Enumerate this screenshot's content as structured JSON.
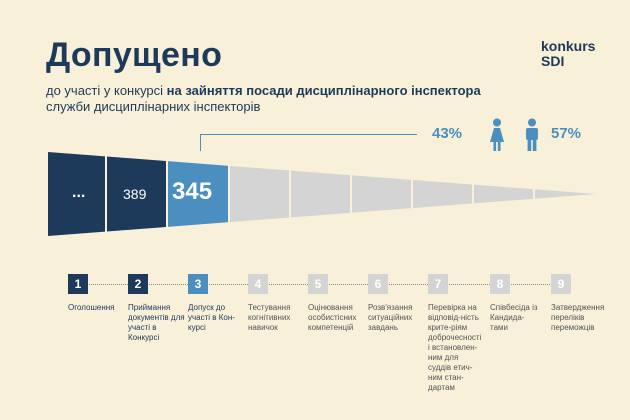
{
  "header": {
    "title": "Допущено",
    "brand_line1": "konkurs",
    "brand_line2": "SDI",
    "subtitle_plain1": "до участі у конкурсі ",
    "subtitle_bold": "на зайняття посади дисциплінарного інспектора",
    "subtitle_plain2": " служби дисциплінарних інспекторів"
  },
  "gender": {
    "female_percent": "43%",
    "male_percent": "57%",
    "female_icon": "woman-icon",
    "male_icon": "man-icon"
  },
  "funnel": {
    "values": [
      "...",
      "389",
      "345"
    ]
  },
  "stages": [
    {
      "number": "1",
      "label": "Оголошення",
      "state": "done"
    },
    {
      "number": "2",
      "label": "Приймання документів для участі в Конкурсі",
      "state": "done"
    },
    {
      "number": "3",
      "label": "Допуск до участі в Кон-курсі",
      "state": "current"
    },
    {
      "number": "4",
      "label": "Тестування когнітивних навичок",
      "state": "pending"
    },
    {
      "number": "5",
      "label": "Оцінювання особистісних компетенцій",
      "state": "pending"
    },
    {
      "number": "6",
      "label": "Розв'язання ситуаційних завдань",
      "state": "pending"
    },
    {
      "number": "7",
      "label": "Перевірка на відповід-ність крите-ріям доброчесності і встановлен-ним для суддів етич-ним стан-дартам",
      "state": "pending"
    },
    {
      "number": "8",
      "label": "Співбесіда із Кандида-тами",
      "state": "pending"
    },
    {
      "number": "9",
      "label": "Затвердження переліків переможців",
      "state": "pending"
    }
  ],
  "colors": {
    "background": "#f8f0d9",
    "dark_blue": "#1e3a5a",
    "accent_blue": "#4a8fc0",
    "pending_gray": "#d4d4d4"
  }
}
